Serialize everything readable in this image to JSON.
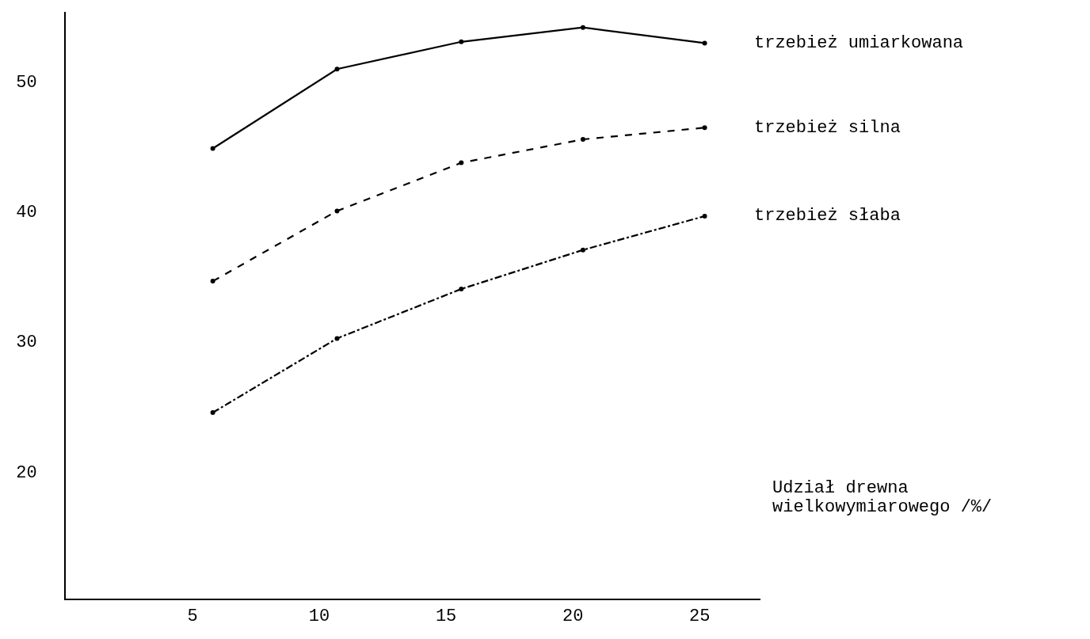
{
  "chart_data": {
    "type": "line",
    "xlabel": "Udział drewna wielkowymiarowego /%/",
    "xlim": [
      0,
      27.4
    ],
    "xticks": [
      5,
      10,
      15,
      20,
      25
    ],
    "ylim": [
      10.2,
      55.3
    ],
    "yticks": [
      20,
      30,
      40,
      50
    ],
    "grid": false,
    "legend": false,
    "marker": "circle",
    "series": [
      {
        "name": "trzebież umiarkowana",
        "color": "#000000",
        "line_style": "solid",
        "x": [
          5.8,
          10.7,
          15.6,
          20.4,
          25.2
        ],
        "values": [
          44.8,
          50.9,
          53.0,
          54.1,
          52.9
        ]
      },
      {
        "name": "trzebież silna",
        "color": "#000000",
        "line_style": "dashed",
        "x": [
          5.8,
          10.7,
          15.6,
          20.4,
          25.2
        ],
        "values": [
          34.6,
          40.0,
          43.7,
          45.5,
          46.4
        ]
      },
      {
        "name": "trzebież słaba",
        "color": "#000000",
        "line_style": "dashdot",
        "x": [
          5.8,
          10.7,
          15.6,
          20.4,
          25.2
        ],
        "values": [
          24.5,
          30.2,
          34.0,
          37.0,
          39.6
        ]
      }
    ]
  }
}
